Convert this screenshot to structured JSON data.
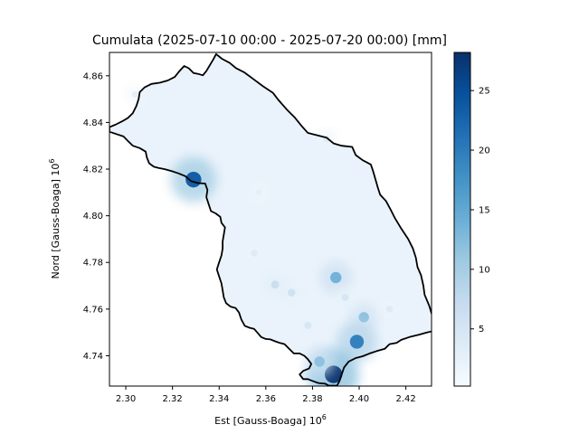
{
  "chart_data": {
    "type": "heatmap",
    "title": "Cumulata (2025-07-10 00:00 - 2025-07-20 00:00) [mm]",
    "xlabel": "Est [Gauss-Boaga] 10",
    "xlabel_exp": "6",
    "ylabel": "Nord [Gauss-Boaga] 10",
    "ylabel_exp": "6",
    "xlim": [
      2.293,
      2.431
    ],
    "ylim": [
      4.727,
      4.87
    ],
    "xticks": [
      2.3,
      2.32,
      2.34,
      2.36,
      2.38,
      2.4,
      2.42
    ],
    "xtick_labels": [
      "2.30",
      "2.32",
      "2.34",
      "2.36",
      "2.38",
      "2.40",
      "2.42"
    ],
    "yticks": [
      4.74,
      4.76,
      4.78,
      4.8,
      4.82,
      4.84,
      4.86
    ],
    "ytick_labels": [
      "4.74",
      "4.76",
      "4.78",
      "4.80",
      "4.82",
      "4.84",
      "4.86"
    ],
    "colorbar": {
      "range": [
        0.2,
        28.2
      ],
      "ticks": [
        5,
        10,
        15,
        20,
        25
      ],
      "tick_labels": [
        "5",
        "10",
        "15",
        "20",
        "25"
      ],
      "colormap": "Blues",
      "colors": [
        "#f7fbff",
        "#deebf7",
        "#c6dbef",
        "#9ecae1",
        "#6baed6",
        "#4292c6",
        "#2171b5",
        "#08519c",
        "#08306b"
      ]
    },
    "hotspots": [
      {
        "x": 2.329,
        "y": 4.8155,
        "value": 24
      },
      {
        "x": 2.39,
        "y": 4.7735,
        "value": 14
      },
      {
        "x": 2.402,
        "y": 4.7565,
        "value": 12
      },
      {
        "x": 2.399,
        "y": 4.746,
        "value": 20
      },
      {
        "x": 2.389,
        "y": 4.732,
        "value": 28
      },
      {
        "x": 2.383,
        "y": 4.7375,
        "value": 12
      },
      {
        "x": 2.364,
        "y": 4.7705,
        "value": 7
      },
      {
        "x": 2.371,
        "y": 4.767,
        "value": 6
      },
      {
        "x": 2.355,
        "y": 4.784,
        "value": 4
      },
      {
        "x": 2.394,
        "y": 4.765,
        "value": 5
      },
      {
        "x": 2.386,
        "y": 4.833,
        "value": 4
      },
      {
        "x": 2.304,
        "y": 4.852,
        "value": 3
      },
      {
        "x": 2.357,
        "y": 4.81,
        "value": 3
      },
      {
        "x": 2.413,
        "y": 4.76,
        "value": 4
      },
      {
        "x": 2.378,
        "y": 4.753,
        "value": 5
      }
    ],
    "region_outline": [
      [
        2.3387,
        4.8693
      ],
      [
        2.3412,
        4.8673
      ],
      [
        2.3445,
        4.8655
      ],
      [
        2.3472,
        4.8633
      ],
      [
        2.3507,
        4.8615
      ],
      [
        2.3545,
        4.8587
      ],
      [
        2.3588,
        4.8555
      ],
      [
        2.363,
        4.8527
      ],
      [
        2.3655,
        4.8495
      ],
      [
        2.369,
        4.8455
      ],
      [
        2.3725,
        4.842
      ],
      [
        2.3755,
        4.8383
      ],
      [
        2.378,
        4.8355
      ],
      [
        2.382,
        4.8345
      ],
      [
        2.386,
        4.8335
      ],
      [
        2.389,
        4.831
      ],
      [
        2.3925,
        4.83
      ],
      [
        2.397,
        4.8295
      ],
      [
        2.3985,
        4.826
      ],
      [
        2.4015,
        4.8238
      ],
      [
        2.405,
        4.822
      ],
      [
        2.406,
        4.819
      ],
      [
        2.407,
        4.8155
      ],
      [
        2.408,
        4.812
      ],
      [
        2.409,
        4.809
      ],
      [
        2.4115,
        4.8063
      ],
      [
        2.4133,
        4.803
      ],
      [
        2.4153,
        4.799
      ],
      [
        2.418,
        4.7945
      ],
      [
        2.421,
        4.79
      ],
      [
        2.423,
        4.786
      ],
      [
        2.4243,
        4.782
      ],
      [
        2.425,
        4.778
      ],
      [
        2.4265,
        4.7745
      ],
      [
        2.4275,
        4.77
      ],
      [
        2.428,
        4.7662
      ],
      [
        2.43,
        4.7615
      ],
      [
        2.4312,
        4.7575
      ],
      [
        2.4312,
        4.7535
      ],
      [
        2.4312,
        4.7505
      ],
      [
        2.429,
        4.75
      ],
      [
        2.4255,
        4.749
      ],
      [
        2.4215,
        4.748
      ],
      [
        2.418,
        4.7468
      ],
      [
        2.416,
        4.7455
      ],
      [
        2.413,
        4.745
      ],
      [
        2.411,
        4.743
      ],
      [
        2.4075,
        4.742
      ],
      [
        2.4045,
        4.741
      ],
      [
        2.4015,
        4.7398
      ],
      [
        2.3985,
        4.739
      ],
      [
        2.3955,
        4.7375
      ],
      [
        2.3935,
        4.735
      ],
      [
        2.3925,
        4.732
      ],
      [
        2.3915,
        4.729
      ],
      [
        2.3905,
        4.7272
      ],
      [
        2.387,
        4.7272
      ],
      [
        2.3855,
        4.728
      ],
      [
        2.3825,
        4.7283
      ],
      [
        2.3805,
        4.729
      ],
      [
        2.378,
        4.73
      ],
      [
        2.376,
        4.73
      ],
      [
        2.3745,
        4.732
      ],
      [
        2.376,
        4.7335
      ],
      [
        2.3785,
        4.7345
      ],
      [
        2.3795,
        4.7365
      ],
      [
        2.378,
        4.7385
      ],
      [
        2.3765,
        4.74
      ],
      [
        2.3745,
        4.741
      ],
      [
        2.372,
        4.741
      ],
      [
        2.37,
        4.743
      ],
      [
        2.368,
        4.745
      ],
      [
        2.366,
        4.7455
      ],
      [
        2.364,
        4.7462
      ],
      [
        2.362,
        4.747
      ],
      [
        2.36,
        4.7472
      ],
      [
        2.358,
        4.748
      ],
      [
        2.3565,
        4.7498
      ],
      [
        2.355,
        4.7515
      ],
      [
        2.353,
        4.752
      ],
      [
        2.351,
        4.7528
      ],
      [
        2.3495,
        4.7555
      ],
      [
        2.3485,
        4.7585
      ],
      [
        2.347,
        4.7605
      ],
      [
        2.345,
        4.761
      ],
      [
        2.343,
        4.7625
      ],
      [
        2.342,
        4.765
      ],
      [
        2.3415,
        4.768
      ],
      [
        2.341,
        4.771
      ],
      [
        2.34,
        4.774
      ],
      [
        2.339,
        4.777
      ],
      [
        2.34,
        4.78
      ],
      [
        2.341,
        4.783
      ],
      [
        2.3415,
        4.786
      ],
      [
        2.3415,
        4.789
      ],
      [
        2.342,
        4.792
      ],
      [
        2.3425,
        4.795
      ],
      [
        2.341,
        4.797
      ],
      [
        2.3405,
        4.7995
      ],
      [
        2.3385,
        4.801
      ],
      [
        2.3365,
        4.802
      ],
      [
        2.3355,
        4.805
      ],
      [
        2.3345,
        4.808
      ],
      [
        2.335,
        4.811
      ],
      [
        2.334,
        4.8138
      ],
      [
        2.331,
        4.814
      ],
      [
        2.328,
        4.8148
      ],
      [
        2.3255,
        4.817
      ],
      [
        2.3225,
        4.8182
      ],
      [
        2.3195,
        4.8192
      ],
      [
        2.3165,
        4.82
      ],
      [
        2.314,
        4.8205
      ],
      [
        2.312,
        4.821
      ],
      [
        2.31,
        4.8225
      ],
      [
        2.309,
        4.825
      ],
      [
        2.3085,
        4.8275
      ],
      [
        2.306,
        4.829
      ],
      [
        2.303,
        4.83
      ],
      [
        2.301,
        4.832
      ],
      [
        2.299,
        4.834
      ],
      [
        2.296,
        4.835
      ],
      [
        2.293,
        4.836
      ],
      [
        2.293,
        4.838
      ],
      [
        2.2955,
        4.839
      ],
      [
        2.2985,
        4.8405
      ],
      [
        2.301,
        4.842
      ],
      [
        2.303,
        4.844
      ],
      [
        2.3045,
        4.847
      ],
      [
        2.3055,
        4.85
      ],
      [
        2.306,
        4.853
      ],
      [
        2.308,
        4.855
      ],
      [
        2.311,
        4.8565
      ],
      [
        2.3145,
        4.857
      ],
      [
        2.318,
        4.858
      ],
      [
        2.321,
        4.8595
      ],
      [
        2.323,
        4.862
      ],
      [
        2.325,
        4.8642
      ],
      [
        2.327,
        4.8632
      ],
      [
        2.329,
        4.8612
      ],
      [
        2.331,
        4.8608
      ],
      [
        2.333,
        4.8602
      ],
      [
        2.3345,
        4.862
      ],
      [
        2.336,
        4.8645
      ],
      [
        2.3375,
        4.867
      ],
      [
        2.3387,
        4.8693
      ]
    ]
  }
}
